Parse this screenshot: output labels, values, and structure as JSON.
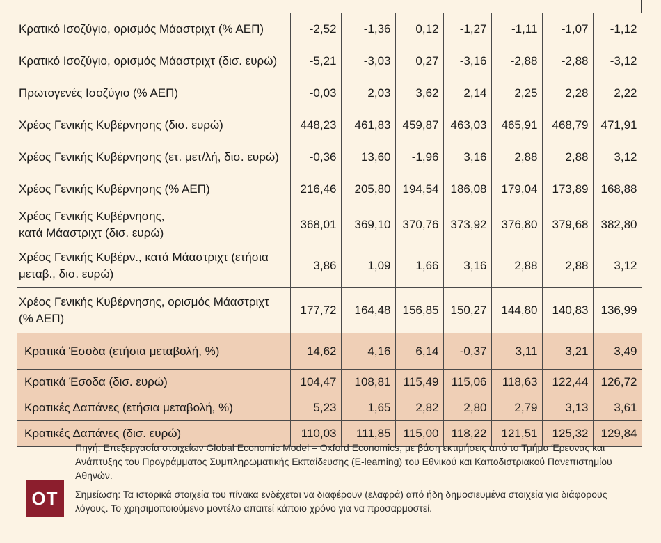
{
  "table": {
    "rows": [
      {
        "label": "Κρατικό Ισοζύγιο, ορισμός Μάαστριχτ (% ΑΕΠ)",
        "values": [
          "-2,52",
          "-1,36",
          "0,12",
          "-1,27",
          "-1,11",
          "-1,07",
          "-1,12"
        ]
      },
      {
        "label": "Κρατικό Ισοζύγιο, ορισμός  Μάαστριχτ (δισ. ευρώ)",
        "values": [
          "-5,21",
          "-3,03",
          "0,27",
          "-3,16",
          "-2,88",
          "-2,88",
          "-3,12"
        ]
      },
      {
        "label": "Πρωτογενές Ισοζύγιο (% ΑΕΠ)",
        "values": [
          "-0,03",
          "2,03",
          "3,62",
          "2,14",
          "2,25",
          "2,28",
          "2,22"
        ]
      },
      {
        "label": "Χρέος Γενικής Κυβέρνησης (δισ. ευρώ)",
        "values": [
          "448,23",
          "461,83",
          "459,87",
          "463,03",
          "465,91",
          "468,79",
          "471,91"
        ]
      },
      {
        "label": "Χρέος Γενικής Κυβέρνησης (ετ. μετ/λή, δισ. ευρώ)",
        "values": [
          "-0,36",
          "13,60",
          "-1,96",
          "3,16",
          "2,88",
          "2,88",
          "3,12"
        ]
      },
      {
        "label": "Χρέος Γενικής Κυβέρνησης (% ΑΕΠ)",
        "values": [
          "216,46",
          "205,80",
          "194,54",
          "186,08",
          "179,04",
          "173,89",
          "168,88"
        ]
      },
      {
        "label": "Χρέος Γενικής Κυβέρνησης, \n κατά Μάαστριχτ (δισ. ευρώ)",
        "values": [
          "368,01",
          "369,10",
          "370,76",
          "373,92",
          "376,80",
          "379,68",
          "382,80"
        ]
      },
      {
        "label": "Χρέος Γενικής Κυβέρν., κατά Μάαστριχτ (ετήσια μεταβ., δισ. ευρώ)",
        "values": [
          "3,86",
          "1,09",
          "1,66",
          "3,16",
          "2,88",
          "2,88",
          "3,12"
        ]
      },
      {
        "label": "Χρέος Γενικής Κυβέρνησης, ορισμός Μάαστριχτ (% ΑΕΠ)",
        "values": [
          "177,72",
          "164,48",
          "156,85",
          "150,27",
          "144,80",
          "140,83",
          "136,99"
        ]
      },
      {
        "label": "Κρατικά Έσοδα (ετήσια μεταβολή, %)",
        "values": [
          "14,62",
          "4,16",
          "6,14",
          "-0,37",
          "3,11",
          "3,21",
          "3,49"
        ]
      },
      {
        "label": "Κρατικά Έσοδα (δισ. ευρώ)",
        "values": [
          "104,47",
          "108,81",
          "115,49",
          "115,06",
          "118,63",
          "122,44",
          "126,72"
        ]
      },
      {
        "label": "Κρατικές Δαπάνες (ετήσια μεταβολή, %)",
        "values": [
          "5,23",
          "1,65",
          "2,82",
          "2,80",
          "2,79",
          "3,13",
          "3,61"
        ]
      },
      {
        "label": "Κρατικές Δαπάνες (δισ. ευρώ)",
        "values": [
          "110,03",
          "111,85",
          "115,00",
          "118,22",
          "121,51",
          "125,32",
          "129,84"
        ]
      }
    ]
  },
  "footer": {
    "source": "Πηγή: Επεξεργασία στοιχείων Global Economic Model – Oxford Economics, με βάση εκτιμήσεις από το Τμήμα Έρευνας και Ανάπτυξης του Προγράμματος Συμπληρωματικής Εκπαίδευσης (E-learning) του Εθνικού και Καποδιστριακού Πανεπιστημίου Αθηνών.",
    "note": "Σημείωση: Τα ιστορικά στοιχεία του πίνακα ενδέχεται να διαφέρουν (ελαφρά) από ήδη δημοσιευμένα στοιχεία για διάφορους λόγους. Το χρησιμοποιούμενο μοντέλο απαιτεί κάποιο χρόνο για να προσαρμοστεί."
  },
  "logo": {
    "text": "OT",
    "color": "#8c1e2d"
  },
  "colors": {
    "background": "#fcf3e4",
    "highlight": "#efcfb6"
  }
}
